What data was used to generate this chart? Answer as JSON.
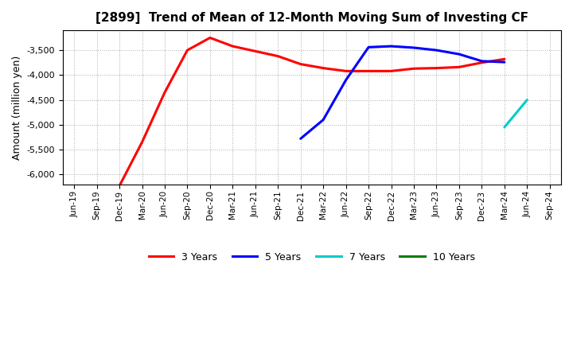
{
  "title": "[2899]  Trend of Mean of 12-Month Moving Sum of Investing CF",
  "ylabel": "Amount (million yen)",
  "background_color": "#ffffff",
  "plot_background": "#ffffff",
  "ylim": [
    -6200,
    -3100
  ],
  "yticks": [
    -6000,
    -5500,
    -5000,
    -4500,
    -4000,
    -3500
  ],
  "x_labels": [
    "Jun-19",
    "Sep-19",
    "Dec-19",
    "Mar-20",
    "Jun-20",
    "Sep-20",
    "Dec-20",
    "Mar-21",
    "Jun-21",
    "Sep-21",
    "Dec-21",
    "Mar-22",
    "Jun-22",
    "Sep-22",
    "Dec-22",
    "Mar-23",
    "Jun-23",
    "Sep-23",
    "Dec-23",
    "Mar-24",
    "Jun-24",
    "Sep-24"
  ],
  "series_3yr": {
    "label": "3 Years",
    "color": "#ff0000",
    "x": [
      "Jun-19",
      "Sep-19",
      "Dec-19",
      "Mar-20",
      "Jun-20",
      "Sep-20",
      "Dec-20",
      "Mar-21",
      "Jun-21",
      "Sep-21",
      "Dec-21",
      "Mar-22",
      "Jun-22",
      "Sep-22",
      "Dec-22",
      "Mar-23",
      "Jun-23",
      "Sep-23",
      "Dec-23",
      "Mar-24"
    ],
    "y": [
      -6230,
      -6230,
      -6230,
      -5350,
      -4350,
      -3500,
      -3250,
      -3420,
      -3520,
      -3620,
      -3780,
      -3860,
      -3920,
      -3920,
      -3920,
      -3870,
      -3860,
      -3840,
      -3750,
      -3680
    ]
  },
  "series_5yr": {
    "label": "5 Years",
    "color": "#0000ff",
    "x": [
      "Dec-21",
      "Mar-22",
      "Jun-22",
      "Sep-22",
      "Dec-22",
      "Mar-23",
      "Jun-23",
      "Sep-23",
      "Dec-23",
      "Mar-24"
    ],
    "y": [
      -5280,
      -4900,
      -4100,
      -3440,
      -3420,
      -3450,
      -3500,
      -3580,
      -3720,
      -3740
    ]
  },
  "series_7yr": {
    "label": "7 Years",
    "color": "#00cccc",
    "x": [
      "Mar-24",
      "Jun-24"
    ],
    "y": [
      -5050,
      -4500
    ]
  },
  "series_10yr": {
    "label": "10 Years",
    "color": "#008000",
    "x": [],
    "y": []
  },
  "legend_labels": [
    "3 Years",
    "5 Years",
    "7 Years",
    "10 Years"
  ],
  "legend_colors": [
    "#ff0000",
    "#0000ff",
    "#00cccc",
    "#008000"
  ]
}
